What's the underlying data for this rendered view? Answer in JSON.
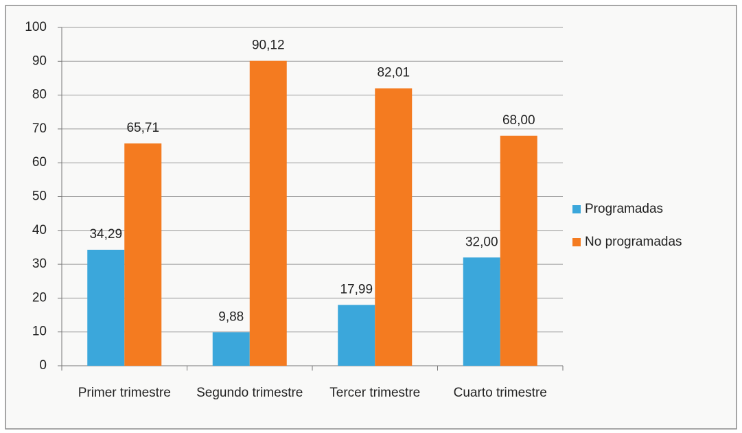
{
  "chart_data": {
    "type": "bar",
    "categories": [
      "Primer trimestre",
      "Segundo trimestre",
      "Tercer trimestre",
      "Cuarto trimestre"
    ],
    "series": [
      {
        "name": "Programadas",
        "color": "#3ba7db",
        "values": [
          34.29,
          9.88,
          17.99,
          32.0
        ],
        "value_labels": [
          "34,29",
          "9,88",
          "17,99",
          "32,00"
        ]
      },
      {
        "name": "No programadas",
        "color": "#f47b20",
        "values": [
          65.71,
          90.12,
          82.01,
          68.0
        ],
        "value_labels": [
          "65,71",
          "90,12",
          "82,01",
          "68,00"
        ]
      }
    ],
    "ylim": [
      0,
      100
    ],
    "yticks": [
      0,
      10,
      20,
      30,
      40,
      50,
      60,
      70,
      80,
      90,
      100
    ],
    "grid": true,
    "legend": "right"
  }
}
